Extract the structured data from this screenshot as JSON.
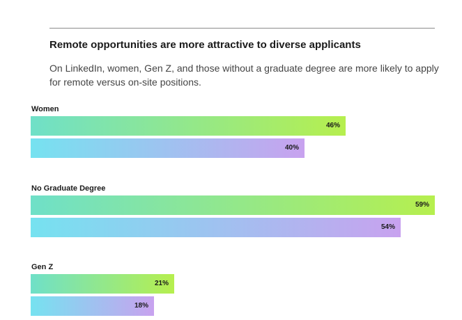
{
  "title": "Remote opportunities are more attractive to diverse applicants",
  "subtitle": "On LinkedIn, women, Gen Z, and those without a graduate degree are more likely to apply for remote versus on-site positions.",
  "colors": {
    "series_0_start": "#6fe0c8",
    "series_0_end": "#b6ef4e",
    "series_1_start": "#76e2f0",
    "series_1_end": "#c8a2ef"
  },
  "chart_data": {
    "type": "bar",
    "orientation": "horizontal",
    "categories": [
      "Women",
      "No Graduate Degree",
      "Gen Z"
    ],
    "series": [
      {
        "values": [
          46,
          59,
          21
        ]
      },
      {
        "values": [
          40,
          54,
          18
        ]
      }
    ],
    "value_labels": [
      [
        "46%",
        "59%",
        "21%"
      ],
      [
        "40%",
        "54%",
        "18%"
      ]
    ],
    "xlim": [
      0,
      59
    ],
    "grid": false,
    "legend": "none"
  }
}
